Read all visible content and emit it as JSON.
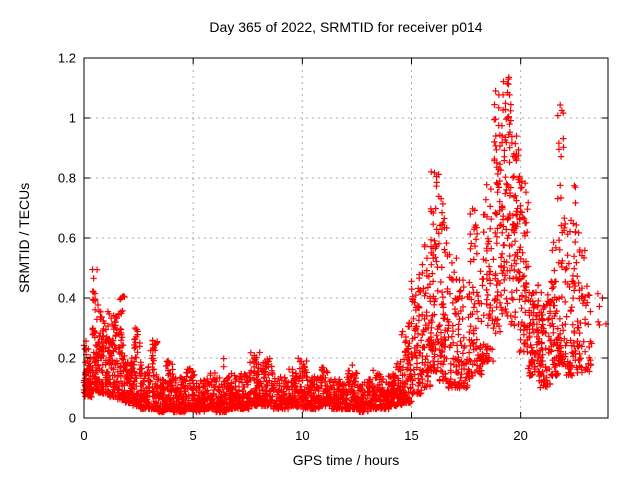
{
  "chart_data": {
    "type": "scatter",
    "title": "Day 365 of 2022, SRMTID for receiver p014",
    "xlabel": "GPS time / hours",
    "ylabel": "SRMTID / TECUs",
    "xlim": [
      0,
      24
    ],
    "ylim": [
      0,
      1.2
    ],
    "xticks": [
      0,
      5,
      10,
      15,
      20
    ],
    "ytick_labels": [
      "0",
      "0.2",
      "0.4",
      "0.6",
      "0.8",
      "1",
      "1.2"
    ],
    "ytick_values": [
      0,
      0.2,
      0.4,
      0.6,
      0.8,
      1.0,
      1.2
    ],
    "grid": true,
    "grid_style": "dashed",
    "legend": false,
    "marker": "plus",
    "marker_color": "#ff0000",
    "grid_color": "#ababab",
    "axis_color": "#000000",
    "background_color": "#ffffff",
    "series": [
      {
        "name": "SRMTID",
        "representation": "density_envelope",
        "note": "Dense + marker scatter; each segment is [t_start_h, t_end_h, value_min_TECU, value_max_TECU, approx_point_count, low_bias_exponent] read from the plot.",
        "segments": [
          [
            0.0,
            0.35,
            0.07,
            0.27,
            70,
            1.6
          ],
          [
            0.35,
            0.65,
            0.09,
            0.5,
            70,
            2.0
          ],
          [
            0.65,
            1.15,
            0.08,
            0.36,
            90,
            1.7
          ],
          [
            1.15,
            1.55,
            0.07,
            0.35,
            80,
            1.8
          ],
          [
            1.55,
            1.85,
            0.06,
            0.42,
            60,
            2.2
          ],
          [
            1.85,
            2.25,
            0.05,
            0.2,
            70,
            1.8
          ],
          [
            2.25,
            2.6,
            0.04,
            0.3,
            60,
            2.2
          ],
          [
            2.6,
            3.0,
            0.03,
            0.18,
            70,
            1.8
          ],
          [
            3.0,
            3.35,
            0.03,
            0.26,
            60,
            2.2
          ],
          [
            3.35,
            3.75,
            0.02,
            0.13,
            70,
            1.6
          ],
          [
            3.75,
            4.1,
            0.03,
            0.19,
            60,
            1.9
          ],
          [
            4.1,
            4.65,
            0.02,
            0.14,
            80,
            1.7
          ],
          [
            4.65,
            5.05,
            0.03,
            0.18,
            60,
            1.9
          ],
          [
            5.05,
            5.6,
            0.02,
            0.13,
            80,
            1.7
          ],
          [
            5.6,
            6.0,
            0.03,
            0.16,
            60,
            1.8
          ],
          [
            6.0,
            6.55,
            0.02,
            0.14,
            80,
            1.8
          ],
          [
            6.4,
            6.45,
            0.17,
            0.2,
            2,
            1.0
          ],
          [
            6.55,
            7.1,
            0.03,
            0.15,
            80,
            1.8
          ],
          [
            7.1,
            7.55,
            0.03,
            0.15,
            70,
            1.8
          ],
          [
            7.55,
            8.05,
            0.04,
            0.22,
            80,
            1.9
          ],
          [
            8.05,
            8.65,
            0.04,
            0.2,
            80,
            1.9
          ],
          [
            8.65,
            9.35,
            0.03,
            0.14,
            90,
            1.7
          ],
          [
            9.35,
            9.75,
            0.04,
            0.17,
            60,
            1.8
          ],
          [
            9.75,
            10.25,
            0.03,
            0.2,
            70,
            2.0
          ],
          [
            10.25,
            10.85,
            0.03,
            0.14,
            80,
            1.7
          ],
          [
            10.85,
            11.35,
            0.04,
            0.17,
            70,
            1.8
          ],
          [
            11.35,
            12.05,
            0.03,
            0.13,
            90,
            1.6
          ],
          [
            12.05,
            12.55,
            0.03,
            0.18,
            70,
            1.9
          ],
          [
            12.55,
            13.05,
            0.02,
            0.12,
            70,
            1.6
          ],
          [
            13.05,
            13.55,
            0.03,
            0.16,
            70,
            1.8
          ],
          [
            13.55,
            14.05,
            0.03,
            0.14,
            70,
            1.7
          ],
          [
            14.05,
            14.55,
            0.04,
            0.19,
            70,
            1.8
          ],
          [
            14.55,
            15.0,
            0.05,
            0.32,
            80,
            2.0
          ],
          [
            15.0,
            15.45,
            0.08,
            0.48,
            70,
            1.9
          ],
          [
            15.45,
            15.85,
            0.1,
            0.6,
            60,
            1.8
          ],
          [
            15.85,
            16.25,
            0.15,
            0.86,
            75,
            1.6
          ],
          [
            16.25,
            16.65,
            0.12,
            0.76,
            65,
            1.7
          ],
          [
            16.65,
            17.15,
            0.1,
            0.55,
            65,
            1.7
          ],
          [
            17.15,
            17.65,
            0.1,
            0.46,
            60,
            1.6
          ],
          [
            17.65,
            18.25,
            0.14,
            0.7,
            75,
            1.5
          ],
          [
            18.25,
            18.75,
            0.18,
            0.78,
            65,
            1.4
          ],
          [
            18.75,
            19.15,
            0.28,
            1.1,
            70,
            1.3
          ],
          [
            19.15,
            19.55,
            0.32,
            1.16,
            75,
            1.2
          ],
          [
            19.55,
            19.95,
            0.3,
            0.96,
            65,
            1.3
          ],
          [
            19.95,
            20.35,
            0.22,
            0.8,
            60,
            1.5
          ],
          [
            20.35,
            20.85,
            0.14,
            0.45,
            75,
            1.5
          ],
          [
            20.85,
            21.35,
            0.1,
            0.42,
            70,
            1.6
          ],
          [
            21.35,
            21.7,
            0.14,
            0.6,
            50,
            1.7
          ],
          [
            21.7,
            22.0,
            0.18,
            1.1,
            55,
            2.0
          ],
          [
            22.0,
            22.45,
            0.14,
            0.66,
            55,
            1.7
          ],
          [
            22.45,
            22.95,
            0.14,
            0.78,
            55,
            1.7
          ],
          [
            22.95,
            23.3,
            0.15,
            0.46,
            25,
            1.5
          ],
          [
            23.5,
            23.95,
            0.3,
            0.42,
            6,
            1.0
          ]
        ],
        "notable_features": {
          "early_spike_hour": 0.55,
          "early_spike_value": 0.49,
          "midday_baseline": [
            0.03,
            0.13
          ],
          "evening_peak_hour": 19.3,
          "evening_peak_value": 1.15,
          "secondary_peak_hour": 16.0,
          "secondary_peak_value": 0.85,
          "late_spike_hour": 21.8,
          "late_spike_value": 1.09
        }
      }
    ],
    "render": {
      "seed": 20221365,
      "marker_arm_px": 3.2,
      "marker_stroke_px": 1.2
    }
  },
  "layout_text": {
    "title": "Day 365 of 2022, SRMTID for receiver p014",
    "xlabel": "GPS time / hours",
    "ylabel": "SRMTID / TECUs"
  }
}
